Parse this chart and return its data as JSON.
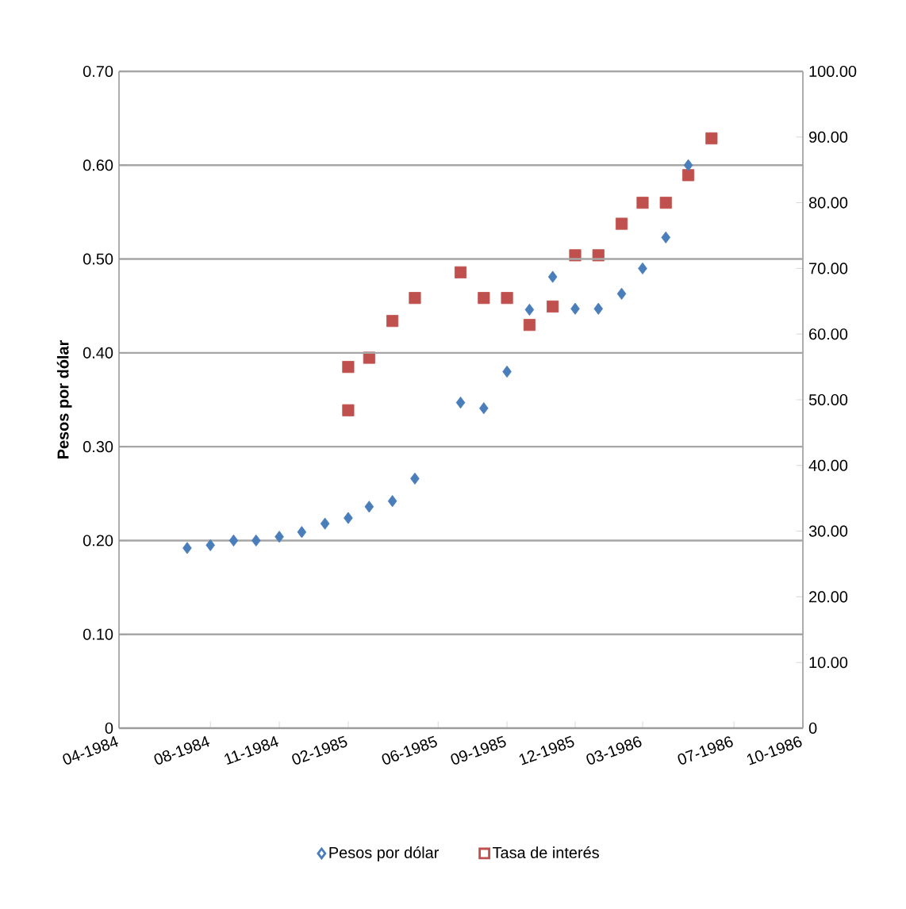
{
  "chart_data": {
    "type": "scatter",
    "ylabel": "Pesos por dólar",
    "xlim": [
      "1984-04",
      "1986-10"
    ],
    "xticks": [
      {
        "value": "1984-04",
        "label": "04-1984"
      },
      {
        "value": "1984-08",
        "label": "08-1984"
      },
      {
        "value": "1984-11",
        "label": "11-1984"
      },
      {
        "value": "1985-02",
        "label": "02-1985"
      },
      {
        "value": "1985-06",
        "label": "06-1985"
      },
      {
        "value": "1985-09",
        "label": "09-1985"
      },
      {
        "value": "1985-12",
        "label": "12-1985"
      },
      {
        "value": "1986-03",
        "label": "03-1986"
      },
      {
        "value": "1986-07",
        "label": "07-1986"
      },
      {
        "value": "1986-10",
        "label": "10-1986"
      }
    ],
    "ylim": [
      0,
      0.7
    ],
    "yticks": [
      {
        "value": 0,
        "label": "0"
      },
      {
        "value": 0.1,
        "label": "0.10"
      },
      {
        "value": 0.2,
        "label": "0.20"
      },
      {
        "value": 0.3,
        "label": "0.30"
      },
      {
        "value": 0.4,
        "label": "0.40"
      },
      {
        "value": 0.5,
        "label": "0.50"
      },
      {
        "value": 0.6,
        "label": "0.60"
      },
      {
        "value": 0.7,
        "label": "0.70"
      }
    ],
    "y2lim": [
      0,
      100
    ],
    "y2ticks": [
      {
        "value": 0,
        "label": "0"
      },
      {
        "value": 10,
        "label": "10.00"
      },
      {
        "value": 20,
        "label": "20.00"
      },
      {
        "value": 30,
        "label": "30.00"
      },
      {
        "value": 40,
        "label": "40.00"
      },
      {
        "value": 50,
        "label": "50.00"
      },
      {
        "value": 60,
        "label": "60.00"
      },
      {
        "value": 70,
        "label": "70.00"
      },
      {
        "value": 80,
        "label": "80.00"
      },
      {
        "value": 90,
        "label": "90.00"
      },
      {
        "value": 100,
        "label": "100.00"
      }
    ],
    "grid": "y",
    "legend": "bottom",
    "series": [
      {
        "name": "Pesos por dólar",
        "color": "#4a7ebb",
        "marker": "diamond",
        "x": [
          "1984-07",
          "1984-08",
          "1984-09",
          "1984-10",
          "1984-11",
          "1984-12",
          "1985-01",
          "1985-02",
          "1985-03",
          "1985-04",
          "1985-05",
          "1985-07",
          "1985-08",
          "1985-09",
          "1985-10",
          "1985-11",
          "1985-12",
          "1986-01",
          "1986-02",
          "1986-03",
          "1986-04",
          "1986-05"
        ],
        "values": [
          0.192,
          0.195,
          0.2,
          0.2,
          0.204,
          0.209,
          0.218,
          0.224,
          0.236,
          0.242,
          0.266,
          0.347,
          0.341,
          0.38,
          0.446,
          0.481,
          0.447,
          0.447,
          0.463,
          0.49,
          0.523,
          0.6
        ]
      },
      {
        "name": "Tasa de interés",
        "color": "#c0504d",
        "marker": "square",
        "axis": "y2",
        "x": [
          "1985-02",
          "1985-02",
          "1985-03",
          "1985-04",
          "1985-05",
          "1985-07",
          "1985-08",
          "1985-09",
          "1985-10",
          "1985-11",
          "1985-12",
          "1986-01",
          "1986-02",
          "1986-03",
          "1986-04",
          "1986-05",
          "1986-06"
        ],
        "values": [
          55.0,
          48.4,
          56.4,
          62.0,
          65.5,
          69.4,
          65.5,
          65.5,
          61.4,
          64.2,
          72.0,
          72.0,
          76.8,
          80.0,
          80.0,
          84.2,
          89.8
        ]
      }
    ]
  }
}
